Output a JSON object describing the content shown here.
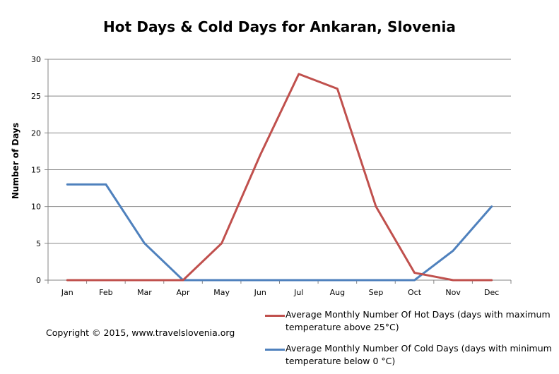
{
  "title": "Hot Days & Cold Days for Ankaran, Slovenia",
  "copyright": "Copyright © 2015,  www.travelslovenia.org",
  "colors": {
    "hot": "#c0504d",
    "cold": "#4f81bd",
    "grid": "#868686",
    "axis": "#868686"
  },
  "chart_data": {
    "type": "line",
    "title": "Hot Days & Cold Days for Ankaran, Slovenia",
    "xlabel": "",
    "ylabel": "Number of Days",
    "categories": [
      "Jan",
      "Feb",
      "Mar",
      "Apr",
      "May",
      "Jun",
      "Jul",
      "Aug",
      "Sep",
      "Oct",
      "Nov",
      "Dec"
    ],
    "ylim": [
      0,
      30
    ],
    "yticks": [
      0,
      5,
      10,
      15,
      20,
      25,
      30
    ],
    "grid": true,
    "legend_position": "bottom-right",
    "series": [
      {
        "name": "Average Monthly Number Of Hot Days (days with maximum temperature above 25°C)",
        "color": "#c0504d",
        "values": [
          0,
          0,
          0,
          0,
          5,
          17,
          28,
          26,
          10,
          1,
          0,
          0
        ]
      },
      {
        "name": "Average Monthly Number Of Cold Days (days with minimum temperature below 0 °C)",
        "color": "#4f81bd",
        "values": [
          13,
          13,
          5,
          0,
          0,
          0,
          0,
          0,
          0,
          0,
          4,
          10
        ]
      }
    ]
  }
}
